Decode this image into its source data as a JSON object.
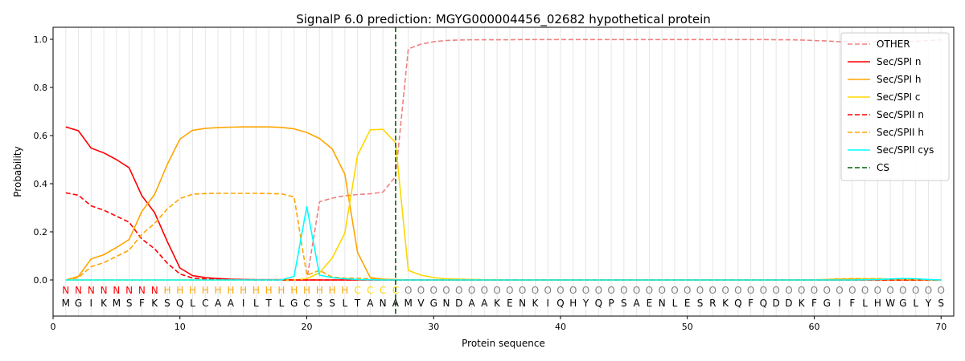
{
  "chart_data": {
    "type": "line",
    "title": "SignalP 6.0 prediction: MGYG000004456_02682 hypothetical protein",
    "xlabel": "Protein sequence",
    "ylabel": "Probability",
    "xlim": [
      0,
      71
    ],
    "ylim": [
      -0.15,
      1.05
    ],
    "xticks": [
      0,
      10,
      20,
      30,
      40,
      50,
      60,
      70
    ],
    "yticks": [
      0.0,
      0.2,
      0.4,
      0.6,
      0.8,
      1.0
    ],
    "grid": "vertical lines at each residue",
    "legend_position": "top-right",
    "sequence": [
      "M",
      "G",
      "I",
      "K",
      "M",
      "S",
      "F",
      "K",
      "S",
      "Q",
      "L",
      "C",
      "A",
      "A",
      "I",
      "L",
      "T",
      "L",
      "G",
      "C",
      "S",
      "S",
      "L",
      "T",
      "A",
      "N",
      "A",
      "M",
      "V",
      "G",
      "N",
      "D",
      "A",
      "A",
      "K",
      "E",
      "N",
      "K",
      "I",
      "Q",
      "H",
      "Y",
      "Q",
      "P",
      "S",
      "A",
      "E",
      "N",
      "L",
      "E",
      "S",
      "R",
      "K",
      "Q",
      "F",
      "Q",
      "D",
      "D",
      "K",
      "F",
      "G",
      "I",
      "F",
      "L",
      "H",
      "W",
      "G",
      "L",
      "Y",
      "S"
    ],
    "region_labels": [
      "N",
      "N",
      "N",
      "N",
      "N",
      "N",
      "N",
      "N",
      "H",
      "H",
      "H",
      "H",
      "H",
      "H",
      "H",
      "H",
      "H",
      "H",
      "H",
      "H",
      "H",
      "H",
      "H",
      "C",
      "C",
      "C",
      "C",
      "O",
      "O",
      "O",
      "O",
      "O",
      "O",
      "O",
      "O",
      "O",
      "O",
      "O",
      "O",
      "O",
      "O",
      "O",
      "O",
      "O",
      "O",
      "O",
      "O",
      "O",
      "O",
      "O",
      "O",
      "O",
      "O",
      "O",
      "O",
      "O",
      "O",
      "O",
      "O",
      "O",
      "O",
      "O",
      "O",
      "O",
      "O",
      "O",
      "O",
      "O",
      "O",
      "O"
    ],
    "region_colors": {
      "N": "#ff0000",
      "H": "#ffa500",
      "C": "#ffd700",
      "O": "#808080"
    },
    "cleavage_site": 27,
    "series": [
      {
        "name": "OTHER",
        "color": "#f08080",
        "dash": "dashed",
        "values": [
          0.0,
          0.0,
          0.0,
          0.0,
          0.0,
          0.0,
          0.0,
          0.0,
          0.0,
          0.0,
          0.0,
          0.0,
          0.0,
          0.0,
          0.0,
          0.0,
          0.0,
          0.0,
          0.0,
          0.0,
          0.325,
          0.34,
          0.35,
          0.355,
          0.358,
          0.365,
          0.43,
          0.96,
          0.98,
          0.99,
          0.995,
          0.997,
          0.998,
          0.998,
          0.998,
          0.998,
          0.999,
          0.999,
          0.999,
          0.999,
          0.999,
          0.999,
          0.999,
          0.999,
          0.999,
          0.999,
          0.999,
          0.999,
          0.999,
          0.999,
          0.999,
          0.999,
          0.999,
          0.999,
          0.999,
          0.999,
          0.998,
          0.998,
          0.997,
          0.995,
          0.993,
          0.99,
          0.99,
          0.99,
          0.99,
          0.99,
          0.99,
          0.992,
          0.995,
          0.998
        ]
      },
      {
        "name": "Sec/SPI n",
        "color": "#ff0000",
        "dash": "solid",
        "values": [
          0.636,
          0.62,
          0.548,
          0.528,
          0.5,
          0.466,
          0.35,
          0.28,
          0.16,
          0.05,
          0.018,
          0.01,
          0.006,
          0.003,
          0.002,
          0.001,
          0.001,
          0.001,
          0.0,
          0.0,
          0.0,
          0.0,
          0.0,
          0.0,
          0.0,
          0.0,
          0.0,
          0.0,
          0.0,
          0.0,
          0.0,
          0.0,
          0.0,
          0.0,
          0.0,
          0.0,
          0.0,
          0.0,
          0.0,
          0.0,
          0.0,
          0.0,
          0.0,
          0.0,
          0.0,
          0.0,
          0.0,
          0.0,
          0.0,
          0.0,
          0.0,
          0.0,
          0.0,
          0.0,
          0.0,
          0.0,
          0.0,
          0.0,
          0.0,
          0.0,
          0.0,
          0.0,
          0.0,
          0.0,
          0.0,
          0.0,
          0.0,
          0.0,
          0.0,
          0.0
        ]
      },
      {
        "name": "Sec/SPI h",
        "color": "#ffa500",
        "dash": "solid",
        "values": [
          0.0,
          0.015,
          0.087,
          0.105,
          0.135,
          0.168,
          0.285,
          0.355,
          0.48,
          0.585,
          0.622,
          0.63,
          0.633,
          0.635,
          0.636,
          0.636,
          0.636,
          0.634,
          0.628,
          0.613,
          0.588,
          0.545,
          0.44,
          0.115,
          0.01,
          0.003,
          0.001,
          0.0,
          0.0,
          0.0,
          0.0,
          0.0,
          0.0,
          0.0,
          0.0,
          0.0,
          0.0,
          0.0,
          0.0,
          0.0,
          0.0,
          0.0,
          0.0,
          0.0,
          0.0,
          0.0,
          0.0,
          0.0,
          0.0,
          0.0,
          0.0,
          0.0,
          0.0,
          0.0,
          0.0,
          0.0,
          0.0,
          0.0,
          0.0,
          0.0,
          0.0,
          0.0,
          0.0,
          0.0,
          0.0,
          0.0,
          0.0,
          0.0,
          0.0,
          0.0
        ]
      },
      {
        "name": "Sec/SPI c",
        "color": "#ffd700",
        "dash": "solid",
        "values": [
          0.0,
          0.0,
          0.0,
          0.0,
          0.0,
          0.0,
          0.0,
          0.0,
          0.0,
          0.0,
          0.0,
          0.0,
          0.0,
          0.0,
          0.0,
          0.0,
          0.0,
          0.0,
          0.0,
          0.005,
          0.03,
          0.09,
          0.195,
          0.518,
          0.624,
          0.626,
          0.57,
          0.04,
          0.02,
          0.01,
          0.005,
          0.003,
          0.002,
          0.001,
          0.001,
          0.0,
          0.0,
          0.0,
          0.0,
          0.0,
          0.0,
          0.0,
          0.0,
          0.0,
          0.0,
          0.0,
          0.0,
          0.0,
          0.0,
          0.0,
          0.0,
          0.0,
          0.0,
          0.0,
          0.0,
          0.0,
          0.0,
          0.0,
          0.0,
          0.0,
          0.002,
          0.004,
          0.005,
          0.005,
          0.005,
          0.004,
          0.003,
          0.002,
          0.001,
          0.0
        ]
      },
      {
        "name": "Sec/SPII n",
        "color": "#ff0000",
        "dash": "dashed",
        "values": [
          0.362,
          0.352,
          0.308,
          0.29,
          0.265,
          0.24,
          0.17,
          0.13,
          0.07,
          0.025,
          0.008,
          0.004,
          0.002,
          0.001,
          0.001,
          0.0,
          0.0,
          0.0,
          0.0,
          0.0,
          0.0,
          0.0,
          0.0,
          0.0,
          0.0,
          0.0,
          0.0,
          0.0,
          0.0,
          0.0,
          0.0,
          0.0,
          0.0,
          0.0,
          0.0,
          0.0,
          0.0,
          0.0,
          0.0,
          0.0,
          0.0,
          0.0,
          0.0,
          0.0,
          0.0,
          0.0,
          0.0,
          0.0,
          0.0,
          0.0,
          0.0,
          0.0,
          0.0,
          0.0,
          0.0,
          0.0,
          0.0,
          0.0,
          0.0,
          0.0,
          0.0,
          0.0,
          0.0,
          0.0,
          0.0,
          0.0,
          0.0,
          0.0,
          0.0,
          0.0
        ]
      },
      {
        "name": "Sec/SPII h",
        "color": "#ffa500",
        "dash": "dashed",
        "values": [
          0.0,
          0.01,
          0.055,
          0.072,
          0.098,
          0.124,
          0.19,
          0.235,
          0.295,
          0.338,
          0.356,
          0.359,
          0.36,
          0.36,
          0.36,
          0.36,
          0.359,
          0.358,
          0.345,
          0.02,
          0.04,
          0.012,
          0.008,
          0.007,
          0.005,
          0.003,
          0.002,
          0.0,
          0.0,
          0.0,
          0.0,
          0.0,
          0.0,
          0.0,
          0.0,
          0.0,
          0.0,
          0.0,
          0.0,
          0.0,
          0.0,
          0.0,
          0.0,
          0.0,
          0.0,
          0.0,
          0.0,
          0.0,
          0.0,
          0.0,
          0.0,
          0.0,
          0.0,
          0.0,
          0.0,
          0.0,
          0.0,
          0.0,
          0.0,
          0.0,
          0.002,
          0.004,
          0.005,
          0.005,
          0.005,
          0.004,
          0.003,
          0.002,
          0.001,
          0.0
        ]
      },
      {
        "name": "Sec/SPII cys",
        "color": "#00ffff",
        "dash": "solid",
        "values": [
          0.0,
          0.0,
          0.0,
          0.0,
          0.0,
          0.0,
          0.0,
          0.0,
          0.0,
          0.0,
          0.0,
          0.0,
          0.0,
          0.0,
          0.0,
          0.0,
          0.0,
          0.0,
          0.015,
          0.305,
          0.02,
          0.01,
          0.005,
          0.002,
          0.001,
          0.0,
          0.0,
          0.0,
          0.0,
          0.0,
          0.0,
          0.0,
          0.0,
          0.0,
          0.0,
          0.0,
          0.0,
          0.0,
          0.0,
          0.0,
          0.0,
          0.0,
          0.0,
          0.0,
          0.0,
          0.0,
          0.0,
          0.0,
          0.0,
          0.0,
          0.0,
          0.0,
          0.0,
          0.0,
          0.0,
          0.0,
          0.0,
          0.0,
          0.0,
          0.0,
          0.0,
          0.0,
          0.0,
          0.001,
          0.002,
          0.004,
          0.006,
          0.005,
          0.002,
          0.0
        ]
      },
      {
        "name": "CS",
        "color": "#006400",
        "dash": "dashed",
        "vline_x": 27
      }
    ]
  }
}
